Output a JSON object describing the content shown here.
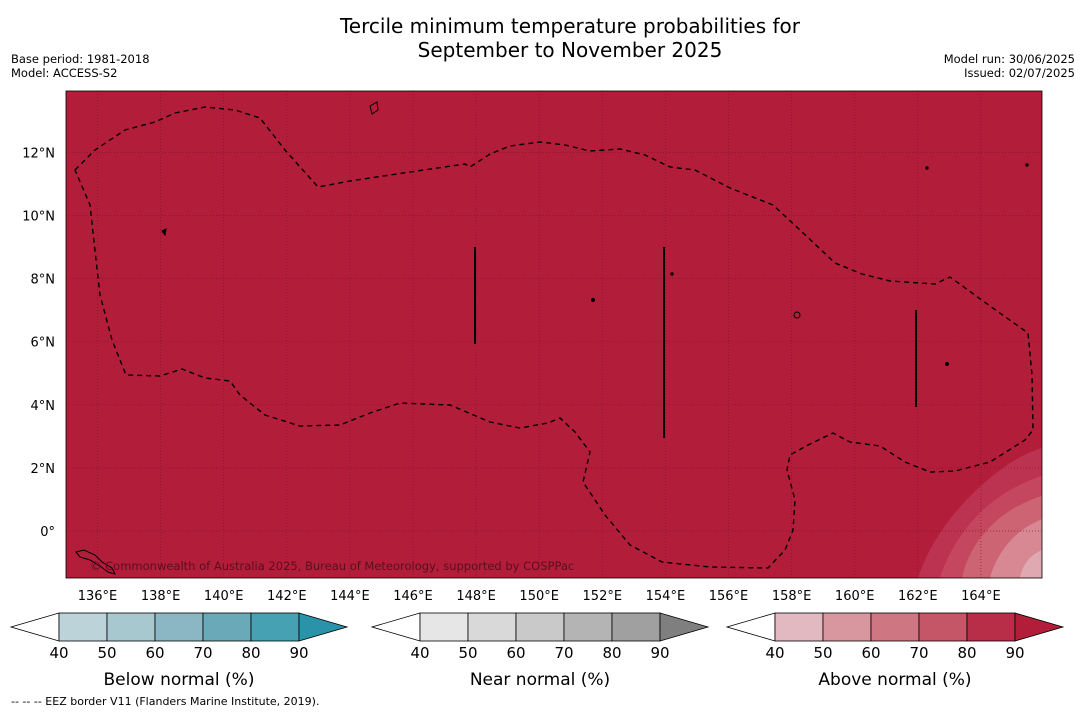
{
  "title_line1": "Tercile minimum temperature probabilities for",
  "title_line2": "September to November 2025",
  "base_period": "Base period: 1981-2018",
  "model": "Model: ACCESS-S2",
  "model_run": "Model run: 30/06/2025",
  "issued": "Issued: 02/07/2025",
  "map": {
    "lon_labels": [
      "136°E",
      "138°E",
      "140°E",
      "142°E",
      "144°E",
      "146°E",
      "148°E",
      "150°E",
      "152°E",
      "154°E",
      "156°E",
      "158°E",
      "160°E",
      "162°E",
      "164°E"
    ],
    "lat_labels": [
      "12°N",
      "10°N",
      "8°N",
      "6°N",
      "4°N",
      "2°N",
      "0°"
    ],
    "background_category": "Above normal, 90%+",
    "fill_color": "#b21d3a",
    "copyright": "© Commonwealth of Australia 2025, Bureau of Meteorology, supported by COSPPac"
  },
  "colorbars": [
    {
      "label": "Below normal (%)",
      "ticks": [
        "40",
        "50",
        "60",
        "70",
        "80",
        "90"
      ],
      "colors": [
        "#ffffff",
        "#bcd3da",
        "#a8c8d0",
        "#8ab7c3",
        "#6aa9b8",
        "#46a1b3",
        "#2a93a9"
      ]
    },
    {
      "label": "Near normal (%)",
      "ticks": [
        "40",
        "50",
        "60",
        "70",
        "80",
        "90"
      ],
      "colors": [
        "#ffffff",
        "#e6e6e6",
        "#d9d9d9",
        "#c9c9c9",
        "#b4b4b4",
        "#a0a0a0",
        "#7f7f7f"
      ]
    },
    {
      "label": "Above normal (%)",
      "ticks": [
        "40",
        "50",
        "60",
        "70",
        "80",
        "90"
      ],
      "colors": [
        "#ffffff",
        "#e2b9c0",
        "#d8979f",
        "#ce7681",
        "#c45668",
        "#b82e48",
        "#b21d3a"
      ]
    }
  ],
  "footnote": "--  --  -- EEZ border V11 (Flanders Marine Institute, 2019)."
}
